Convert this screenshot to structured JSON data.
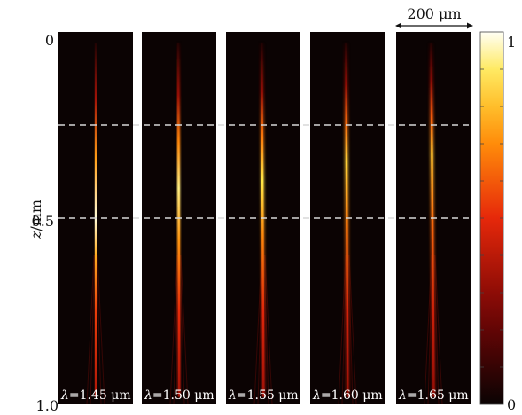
{
  "chart_data": {
    "type": "heatmap",
    "title": "",
    "ylabel": "z/mm",
    "ylabel_var": "z",
    "ylabel_unit": "/mm",
    "ylim": [
      0,
      1.0
    ],
    "y_ticks": [
      "0",
      "0.5",
      "1.0"
    ],
    "scale_bar": "200 μm",
    "colorbar": {
      "min_label": "0",
      "max_label": "1",
      "colormap": "hot"
    },
    "dashed_lines_z_mm": [
      0.25,
      0.5
    ],
    "panels": [
      {
        "label_var": "λ",
        "label_value": "=1.45 μm",
        "beam_start_z": 0.18,
        "peak_z": 0.5,
        "brightness": 0.98,
        "tilt": 0.0
      },
      {
        "label_var": "λ",
        "label_value": "=1.50 μm",
        "beam_start_z": 0.17,
        "peak_z": 0.42,
        "brightness": 0.92,
        "tilt": 0.002
      },
      {
        "label_var": "λ",
        "label_value": "=1.55 μm",
        "beam_start_z": 0.16,
        "peak_z": 0.4,
        "brightness": 0.88,
        "tilt": 0.004
      },
      {
        "label_var": "λ",
        "label_value": "=1.60 μm",
        "beam_start_z": 0.14,
        "peak_z": 0.35,
        "brightness": 0.84,
        "tilt": 0.004
      },
      {
        "label_var": "λ",
        "label_value": "=1.65 μm",
        "beam_start_z": 0.13,
        "peak_z": 0.33,
        "brightness": 0.8,
        "tilt": 0.006
      }
    ]
  }
}
